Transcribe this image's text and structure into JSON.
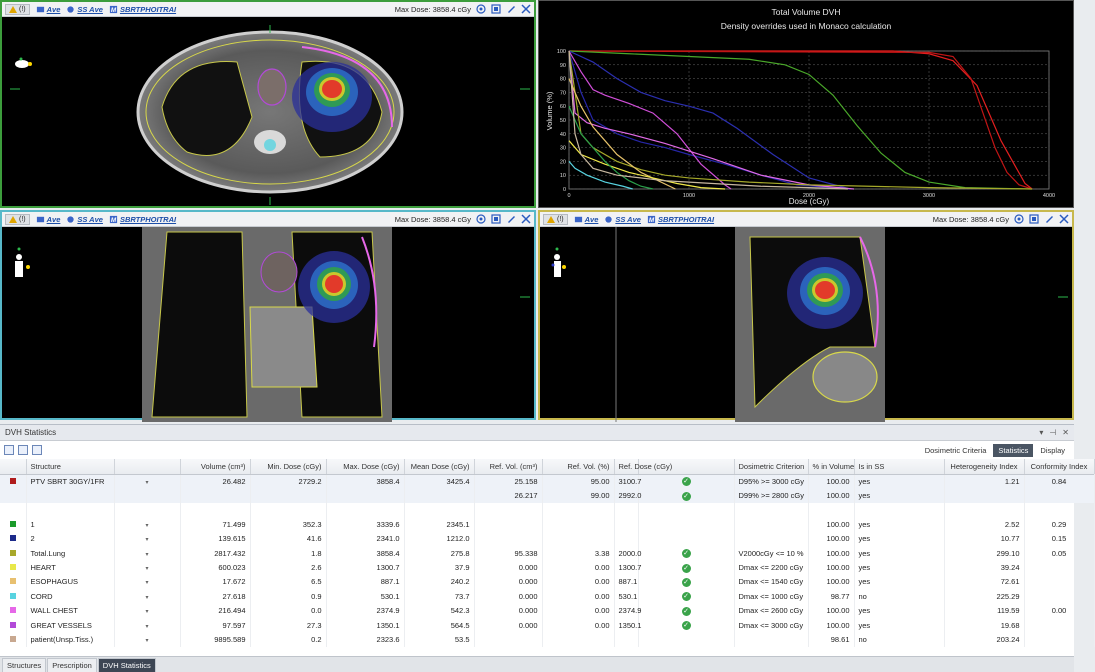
{
  "viewport_toolbar": {
    "warn_count": "(!)",
    "link_ave": "Ave",
    "link_ss_ave": "SS Ave",
    "link_plan": "SBRTPHOITRAI",
    "max_dose": "Max Dose: 3858.4 cGy"
  },
  "dvh": {
    "title": "Total Volume DVH",
    "subtitle": "Density overrides used in Monaco calculation",
    "xlabel": "Dose (cGy)",
    "ylabel": "Volume (%)"
  },
  "chart_data": {
    "type": "line",
    "title": "Total Volume DVH",
    "subtitle": "Density overrides used in Monaco calculation",
    "xlabel": "Dose (cGy)",
    "ylabel": "Volume (%)",
    "xlim": [
      0,
      4000
    ],
    "ylim": [
      0,
      100
    ],
    "xticks": [
      0,
      1000,
      2000,
      3000,
      4000
    ],
    "yticks": [
      0,
      10,
      20,
      30,
      40,
      50,
      60,
      70,
      80,
      90,
      100
    ],
    "grid": true,
    "series": [
      {
        "color": "#e21f1f",
        "x": [
          0,
          2700,
          3000,
          3200,
          3400,
          3600,
          3800,
          3860
        ],
        "y": [
          100,
          100,
          98,
          93,
          75,
          35,
          4,
          0
        ]
      },
      {
        "color": "#c01515",
        "x": [
          0,
          3000,
          3200,
          3350,
          3450,
          3550,
          3650,
          3750,
          3860
        ],
        "y": [
          100,
          99,
          96,
          80,
          55,
          30,
          12,
          3,
          0
        ]
      },
      {
        "color": "#4aa82a",
        "x": [
          0,
          500,
          1000,
          1500,
          1800,
          2000,
          2200,
          2400,
          2600,
          2800,
          3000,
          3300,
          3860
        ],
        "y": [
          100,
          98,
          96,
          94,
          90,
          83,
          68,
          46,
          26,
          12,
          5,
          1,
          0
        ]
      },
      {
        "color": "#2b2fb0",
        "x": [
          0,
          200,
          400,
          600,
          800,
          1000,
          1200,
          1400,
          1700,
          2000,
          2342
        ],
        "y": [
          100,
          92,
          80,
          70,
          64,
          60,
          55,
          44,
          25,
          8,
          0
        ]
      },
      {
        "color": "#2626a8",
        "x": [
          0,
          100,
          200,
          400,
          600,
          800,
          1000,
          1300,
          1600,
          1900,
          2342
        ],
        "y": [
          100,
          70,
          50,
          40,
          34,
          30,
          25,
          18,
          10,
          3,
          0
        ]
      },
      {
        "color": "#d04ed8",
        "x": [
          0,
          100,
          200,
          300,
          500,
          700,
          900,
          1100,
          1300,
          1351
        ],
        "y": [
          100,
          85,
          72,
          68,
          62,
          55,
          40,
          18,
          3,
          0
        ]
      },
      {
        "color": "#e06ae6",
        "x": [
          0,
          50,
          150,
          300,
          500,
          800,
          1200,
          1600,
          2000,
          2375
        ],
        "y": [
          100,
          55,
          48,
          44,
          40,
          33,
          22,
          10,
          3,
          0
        ]
      },
      {
        "color": "#a6a92a",
        "x": [
          0,
          100,
          200,
          400,
          600,
          800,
          1000,
          1500,
          2000,
          2500,
          3000,
          3858
        ],
        "y": [
          100,
          40,
          30,
          20,
          14,
          10,
          8,
          5,
          3,
          2,
          1,
          0
        ]
      },
      {
        "color": "#e6c26a",
        "x": [
          0,
          100,
          200,
          300,
          400,
          600,
          887
        ],
        "y": [
          80,
          60,
          45,
          35,
          25,
          12,
          0
        ]
      },
      {
        "color": "#f0e84a",
        "x": [
          0,
          100,
          300,
          500,
          700,
          900,
          1100,
          1300
        ],
        "y": [
          35,
          25,
          18,
          12,
          8,
          4,
          1,
          0
        ]
      },
      {
        "color": "#58d3e0",
        "x": [
          0,
          50,
          150,
          300,
          450,
          531
        ],
        "y": [
          20,
          15,
          10,
          5,
          2,
          0
        ]
      },
      {
        "color": "#2aa04a",
        "x": [
          0,
          100,
          200,
          300,
          400,
          500,
          600,
          700
        ],
        "y": [
          60,
          40,
          30,
          20,
          12,
          6,
          2,
          0
        ]
      },
      {
        "color": "#c8b8a0",
        "x": [
          0,
          50,
          100,
          200,
          400,
          800,
          1200,
          1600,
          2000,
          2324
        ],
        "y": [
          100,
          40,
          25,
          15,
          10,
          6,
          4,
          2,
          1,
          0
        ]
      }
    ]
  },
  "stats": {
    "panel_title": "DVH Statistics",
    "header_controls": [
      "▾",
      "⊣",
      "✕"
    ],
    "view_tabs": [
      "Dosimetric Criteria",
      "Statistics",
      "Display"
    ],
    "columns": [
      "Structure",
      "Volume (cm³)",
      "Min. Dose (cGy)",
      "Max. Dose (cGy)",
      "Mean Dose (cGy)",
      "Ref. Vol. (cm³)",
      "Ref. Vol. (%)",
      "Ref. Dose (cGy)",
      "",
      "Dosimetric Criterion",
      "% in Volume",
      "Is in SS",
      "Heterogeneity Index",
      "Conformity Index"
    ],
    "rows": [
      {
        "color": "#b01c1c",
        "name": "PTV SBRT 30GY/1FR",
        "volume": "26.482",
        "min": "2729.2",
        "max": "3858.4",
        "mean": "3425.4",
        "ref_vol_cc": "25.158",
        "ref_vol_pct": "95.00",
        "ref_dose": "3100.7",
        "check": true,
        "criterion": "D95% >= 3000 cGy",
        "pct_in_vol": "100.00",
        "in_ss": "yes",
        "hi": "1.21",
        "ci": "0.84"
      },
      {
        "color": "",
        "name": "",
        "volume": "",
        "min": "",
        "max": "",
        "mean": "",
        "ref_vol_cc": "26.217",
        "ref_vol_pct": "99.00",
        "ref_dose": "2992.0",
        "check": true,
        "criterion": "D99% >= 2800 cGy",
        "pct_in_vol": "100.00",
        "in_ss": "yes",
        "hi": "",
        "ci": ""
      },
      {
        "color": "",
        "name": "",
        "volume": "",
        "min": "",
        "max": "",
        "mean": "",
        "ref_vol_cc": "",
        "ref_vol_pct": "",
        "ref_dose": "",
        "check": false,
        "criterion": "",
        "pct_in_vol": "",
        "in_ss": "",
        "hi": "",
        "ci": ""
      },
      {
        "color": "#1a9a2a",
        "name": "1",
        "volume": "71.499",
        "min": "352.3",
        "max": "3339.6",
        "mean": "2345.1",
        "ref_vol_cc": "",
        "ref_vol_pct": "",
        "ref_dose": "",
        "check": false,
        "criterion": "",
        "pct_in_vol": "100.00",
        "in_ss": "yes",
        "hi": "2.52",
        "ci": "0.29"
      },
      {
        "color": "#1c2a8a",
        "name": "2",
        "volume": "139.615",
        "min": "41.6",
        "max": "2341.0",
        "mean": "1212.0",
        "ref_vol_cc": "",
        "ref_vol_pct": "",
        "ref_dose": "",
        "check": false,
        "criterion": "",
        "pct_in_vol": "100.00",
        "in_ss": "yes",
        "hi": "10.77",
        "ci": "0.15"
      },
      {
        "color": "#a8a82a",
        "name": "Total.Lung",
        "volume": "2817.432",
        "min": "1.8",
        "max": "3858.4",
        "mean": "275.8",
        "ref_vol_cc": "95.338",
        "ref_vol_pct": "3.38",
        "ref_dose": "2000.0",
        "check": true,
        "criterion": "V2000cGy <= 10 %",
        "pct_in_vol": "100.00",
        "in_ss": "yes",
        "hi": "299.10",
        "ci": "0.05"
      },
      {
        "color": "#e8e84a",
        "name": "HEART",
        "volume": "600.023",
        "min": "2.6",
        "max": "1300.7",
        "mean": "37.9",
        "ref_vol_cc": "0.000",
        "ref_vol_pct": "0.00",
        "ref_dose": "1300.7",
        "check": true,
        "criterion": "Dmax <= 2200 cGy",
        "pct_in_vol": "100.00",
        "in_ss": "yes",
        "hi": "39.24",
        "ci": ""
      },
      {
        "color": "#e8c070",
        "name": "ESOPHAGUS",
        "volume": "17.672",
        "min": "6.5",
        "max": "887.1",
        "mean": "240.2",
        "ref_vol_cc": "0.000",
        "ref_vol_pct": "0.00",
        "ref_dose": "887.1",
        "check": true,
        "criterion": "Dmax <= 1540 cGy",
        "pct_in_vol": "100.00",
        "in_ss": "yes",
        "hi": "72.61",
        "ci": ""
      },
      {
        "color": "#58d3e0",
        "name": "CORD",
        "volume": "27.618",
        "min": "0.9",
        "max": "530.1",
        "mean": "73.7",
        "ref_vol_cc": "0.000",
        "ref_vol_pct": "0.00",
        "ref_dose": "530.1",
        "check": true,
        "criterion": "Dmax <= 1000 cGy",
        "pct_in_vol": "98.77",
        "in_ss": "no",
        "hi": "225.29",
        "ci": ""
      },
      {
        "color": "#e668e8",
        "name": "WALL CHEST",
        "volume": "216.494",
        "min": "0.0",
        "max": "2374.9",
        "mean": "542.3",
        "ref_vol_cc": "0.000",
        "ref_vol_pct": "0.00",
        "ref_dose": "2374.9",
        "check": true,
        "criterion": "Dmax <= 2600 cGy",
        "pct_in_vol": "100.00",
        "in_ss": "yes",
        "hi": "119.59",
        "ci": "0.00"
      },
      {
        "color": "#b24ad8",
        "name": "GREAT VESSELS",
        "volume": "97.597",
        "min": "27.3",
        "max": "1350.1",
        "mean": "564.5",
        "ref_vol_cc": "0.000",
        "ref_vol_pct": "0.00",
        "ref_dose": "1350.1",
        "check": true,
        "criterion": "Dmax <= 3000 cGy",
        "pct_in_vol": "100.00",
        "in_ss": "yes",
        "hi": "19.68",
        "ci": ""
      },
      {
        "color": "#c8a890",
        "name": "patient(Unsp.Tiss.)",
        "volume": "9895.589",
        "min": "0.2",
        "max": "2323.6",
        "mean": "53.5",
        "ref_vol_cc": "",
        "ref_vol_pct": "",
        "ref_dose": "",
        "check": false,
        "criterion": "",
        "pct_in_vol": "98.61",
        "in_ss": "no",
        "hi": "203.24",
        "ci": ""
      }
    ]
  },
  "bottom_tabs": [
    "Structures",
    "Prescription",
    "DVH Statistics"
  ]
}
